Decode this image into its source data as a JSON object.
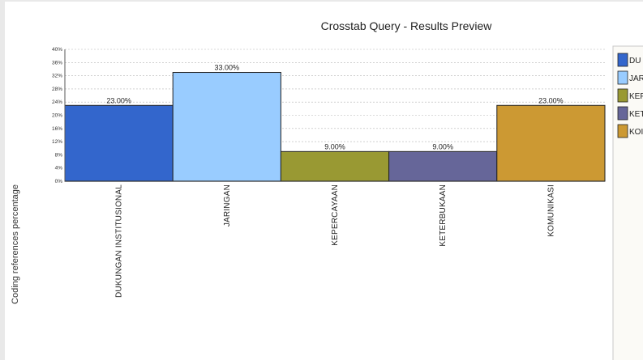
{
  "chart_data": {
    "type": "bar",
    "title": "Crosstab Query - Results Preview",
    "ylabel": "Coding references percentage",
    "xlabel": "",
    "categories": [
      "DUKUNGAN INSTITUSIONAL",
      "JARINGAN",
      "KEPERCAYAAN",
      "KETERBUKAAN",
      "KOMUNIKASI"
    ],
    "values": [
      23.0,
      33.0,
      9.0,
      9.0,
      23.0
    ],
    "data_labels": [
      "23.00%",
      "33.00%",
      "9.00%",
      "9.00%",
      "23.00%"
    ],
    "colors": [
      "#3366cc",
      "#99ccff",
      "#999933",
      "#666699",
      "#cc9933"
    ],
    "ylim": [
      0,
      40
    ],
    "yticks": [
      "0%",
      "4%",
      "8%",
      "12%",
      "16%",
      "20%",
      "24%",
      "28%",
      "32%",
      "36%",
      "40%"
    ],
    "grid": true,
    "legend": {
      "placement": "right",
      "entries": [
        "DU",
        "JAR",
        "KEP",
        "KET",
        "KOI"
      ]
    }
  }
}
